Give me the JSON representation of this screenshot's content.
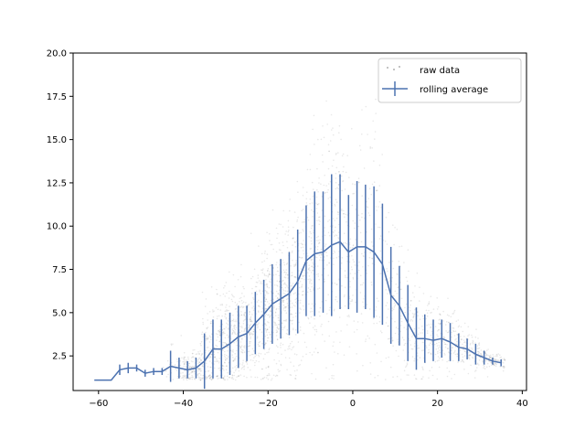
{
  "chart_data": {
    "type": "line",
    "title": "",
    "xlabel": "",
    "ylabel": "",
    "xlim": [
      -66,
      41
    ],
    "ylim": [
      0.5,
      20.0
    ],
    "xticks": [
      -60,
      -40,
      -20,
      0,
      20,
      40
    ],
    "xtick_labels": [
      "−60",
      "−40",
      "−20",
      "0",
      "20",
      "40"
    ],
    "yticks": [
      2.5,
      5.0,
      7.5,
      10.0,
      12.5,
      15.0,
      17.5,
      20.0
    ],
    "ytick_labels": [
      "2.5",
      "5.0",
      "7.5",
      "10.0",
      "12.5",
      "15.0",
      "17.5",
      "20.0"
    ],
    "grid": false,
    "legend": {
      "placement": "upper right",
      "entries": [
        "raw data",
        "rolling average"
      ]
    },
    "series": [
      {
        "name": "raw data",
        "kind": "scatter",
        "color": "#000000",
        "alpha": 0.08,
        "note_density": "dense cloud of small points, highest density between x -30 and 10"
      },
      {
        "name": "rolling average",
        "kind": "line_with_errorbars",
        "color": "#4c72b0",
        "x": [
          -61,
          -57,
          -55,
          -53,
          -51,
          -49,
          -47,
          -45,
          -43,
          -41,
          -39,
          -37,
          -35,
          -33,
          -31,
          -29,
          -27,
          -25,
          -23,
          -21,
          -19,
          -17,
          -15,
          -13,
          -11,
          -9,
          -7,
          -5,
          -3,
          -1,
          1,
          3,
          5,
          7,
          9,
          11,
          13,
          15,
          17,
          19,
          21,
          23,
          25,
          27,
          29,
          31,
          33,
          35
        ],
        "y": [
          1.1,
          1.1,
          1.7,
          1.8,
          1.8,
          1.5,
          1.6,
          1.6,
          1.9,
          1.8,
          1.7,
          1.8,
          2.2,
          2.9,
          2.9,
          3.2,
          3.6,
          3.8,
          4.4,
          4.9,
          5.5,
          5.8,
          6.1,
          6.8,
          8.0,
          8.4,
          8.5,
          8.9,
          9.1,
          8.5,
          8.8,
          8.8,
          8.5,
          7.8,
          6.0,
          5.4,
          4.4,
          3.5,
          3.5,
          3.4,
          3.5,
          3.3,
          3.0,
          2.9,
          2.6,
          2.4,
          2.2,
          2.1
        ],
        "yerr": [
          0.0,
          0.0,
          0.3,
          0.3,
          0.2,
          0.2,
          0.2,
          0.2,
          0.9,
          0.6,
          0.5,
          0.6,
          1.6,
          1.7,
          1.7,
          1.8,
          1.8,
          1.6,
          1.8,
          2.0,
          2.3,
          2.3,
          2.4,
          3.0,
          3.2,
          3.6,
          3.5,
          4.1,
          3.9,
          3.3,
          3.8,
          3.6,
          3.8,
          3.5,
          2.8,
          2.3,
          2.2,
          1.8,
          1.4,
          1.2,
          1.1,
          1.1,
          0.8,
          0.6,
          0.6,
          0.4,
          0.2,
          0.2
        ]
      }
    ]
  }
}
